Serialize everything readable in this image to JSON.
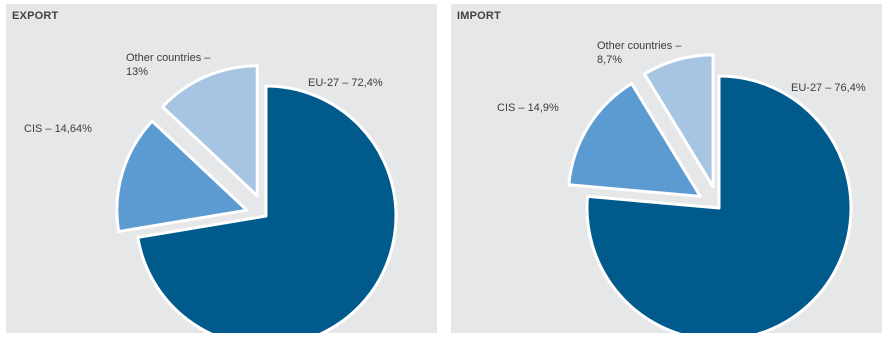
{
  "chart_data": [
    {
      "type": "pie",
      "title": "EXPORT",
      "slices": [
        {
          "label": "EU-27 – 72,4%",
          "value": 72.4,
          "color": "#005a8c"
        },
        {
          "label": "CIS – 14,64%",
          "value": 14.64,
          "color": "#5b9bd1"
        },
        {
          "label": "Other countries – 13%",
          "value": 13,
          "color": "#a7c4e3"
        }
      ]
    },
    {
      "type": "pie",
      "title": "IMPORT",
      "slices": [
        {
          "label": "EU-27 – 76,4%",
          "value": 76.4,
          "color": "#005a8c"
        },
        {
          "label": "CIS – 14,9%",
          "value": 14.9,
          "color": "#5b9bd1"
        },
        {
          "label": "Other countries – 8,7%",
          "value": 8.7,
          "color": "#a7c4e3"
        }
      ]
    }
  ]
}
